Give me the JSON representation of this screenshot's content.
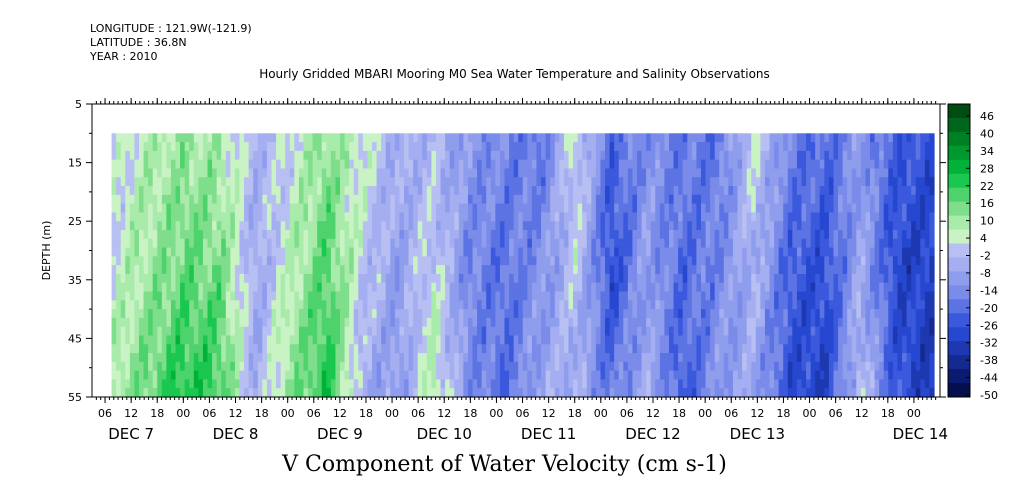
{
  "meta": {
    "longitude": "LONGITUDE : 121.9W(-121.9)",
    "latitude": "LATITUDE : 36.8N",
    "year": "YEAR : 2010"
  },
  "chart_data": {
    "type": "heatmap",
    "title": "Hourly Gridded MBARI Mooring M0 Sea Water Temperature and Salinity Observations",
    "xlabel": "V Component of Water Velocity (cm s-1)",
    "ylabel": "DEPTH (m)",
    "y_range": [
      5,
      55
    ],
    "y_axis_inverted": true,
    "y_ticks": [
      5,
      15,
      25,
      35,
      45,
      55
    ],
    "data_depth_range": [
      10,
      55
    ],
    "x_hour_labels": [
      "06",
      "12",
      "18",
      "00",
      "06",
      "12",
      "18",
      "00",
      "06",
      "12",
      "18",
      "00",
      "06",
      "12",
      "18",
      "00",
      "06",
      "12",
      "18",
      "00",
      "06",
      "12",
      "18",
      "00",
      "06",
      "12",
      "18",
      "00",
      "06",
      "12",
      "18",
      "00"
    ],
    "x_day_labels": [
      "DEC  7",
      "DEC  8",
      "DEC  9",
      "DEC 10",
      "DEC 11",
      "DEC 12",
      "DEC 13",
      "DEC 14"
    ],
    "colorbar_labels": [
      "46",
      "40",
      "34",
      "28",
      "22",
      "16",
      "10",
      "4",
      "-2",
      "-8",
      "-14",
      "-20",
      "-26",
      "-32",
      "-38",
      "-44",
      "-50"
    ],
    "colorbar_colors": [
      "#004d13",
      "#00661c",
      "#008025",
      "#00992e",
      "#00b338",
      "#1ac74f",
      "#4ed26c",
      "#7fde8b",
      "#a9ebab",
      "#c9f3c5",
      "#b8bff2",
      "#a4aef0",
      "#8f9ded",
      "#7a8be9",
      "#5c73e3",
      "#3b59dd",
      "#2647cf",
      "#1d38b0",
      "#142a90",
      "#0b1c70",
      "#050f50"
    ],
    "series": [
      {
        "columns_v_top_to_bottom": [
          [
            2,
            5,
            10
          ],
          [
            8,
            12,
            18
          ],
          [
            12,
            18,
            26
          ],
          [
            10,
            16,
            22
          ],
          [
            -2,
            -6,
            -4
          ],
          [
            4,
            8,
            14
          ],
          [
            14,
            20,
            26
          ],
          [
            6,
            2,
            -4
          ],
          [
            -4,
            -8,
            -10
          ],
          [
            -2,
            4,
            10
          ],
          [
            -10,
            -14,
            -12
          ],
          [
            -14,
            -18,
            -20
          ],
          [
            -18,
            -12,
            -6
          ],
          [
            6,
            2,
            -4
          ],
          [
            -20,
            -28,
            -18
          ],
          [
            -12,
            -8,
            -4
          ],
          [
            -16,
            -20,
            -24
          ],
          [
            -18,
            -14,
            -10
          ],
          [
            4,
            -2,
            -6
          ],
          [
            -14,
            -22,
            -26
          ],
          [
            -20,
            -26,
            -30
          ],
          [
            -10,
            -6,
            2
          ],
          [
            -22,
            -28,
            -24
          ],
          [
            -26,
            -30,
            -32
          ]
        ]
      }
    ]
  }
}
